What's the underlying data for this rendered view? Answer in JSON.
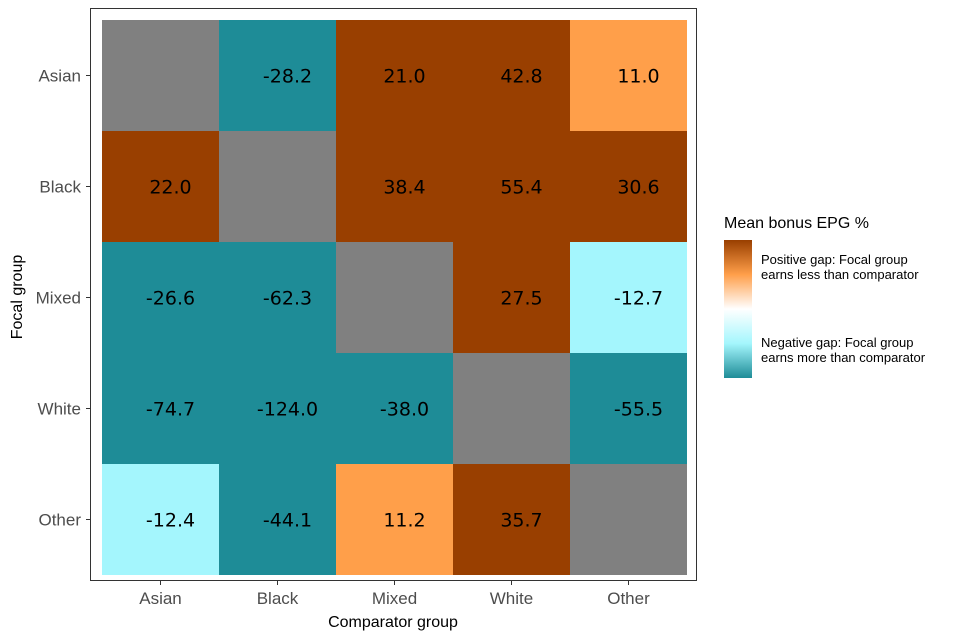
{
  "chart_data": {
    "type": "heatmap",
    "title": "",
    "xlabel": "Comparator group",
    "ylabel": "Focal group",
    "x_categories": [
      "Asian",
      "Black",
      "Mixed",
      "White",
      "Other"
    ],
    "y_categories": [
      "Asian",
      "Black",
      "Mixed",
      "White",
      "Other"
    ],
    "values": [
      [
        null,
        -28.2,
        21.0,
        42.8,
        11.0
      ],
      [
        22.0,
        null,
        38.4,
        55.4,
        30.6
      ],
      [
        -26.6,
        -62.3,
        null,
        27.5,
        -12.7
      ],
      [
        -74.7,
        -124.0,
        -38.0,
        null,
        -55.5
      ],
      [
        -12.4,
        -44.1,
        11.2,
        35.7,
        null
      ]
    ],
    "cell_colors": [
      [
        "#808080",
        "#1e8c97",
        "#993f00",
        "#993f00",
        "#ff9f4a"
      ],
      [
        "#993f00",
        "#808080",
        "#993f00",
        "#993f00",
        "#993f00"
      ],
      [
        "#1e8c97",
        "#1e8c97",
        "#808080",
        "#993f00",
        "#a4f6fd"
      ],
      [
        "#1e8c97",
        "#1e8c97",
        "#1e8c97",
        "#808080",
        "#1e8c97"
      ],
      [
        "#a4f6fd",
        "#1e8c97",
        "#ff9f4a",
        "#993f00",
        "#808080"
      ]
    ],
    "na_color": "#808080",
    "legend": {
      "title": "Mean bonus EPG %",
      "position": "right",
      "gradient": [
        "#993f00",
        "#ff9f4a",
        "#ffffff",
        "#a4f6fd",
        "#1e8c97"
      ],
      "labels": [
        [
          "Positive gap: Focal group",
          "earns less than comparator"
        ],
        [
          "Negative gap: Focal group",
          "earns more than comparator"
        ]
      ]
    }
  }
}
